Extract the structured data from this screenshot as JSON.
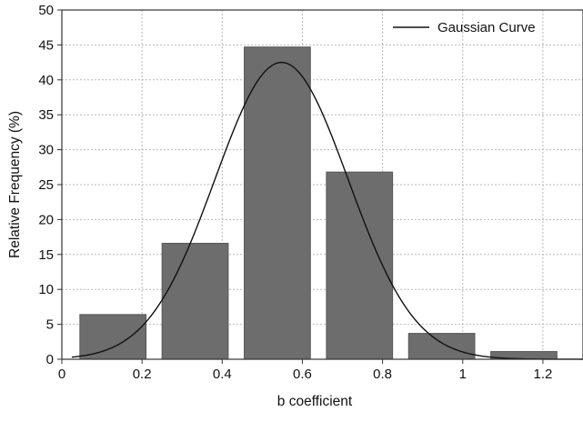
{
  "chart_data": {
    "type": "bar",
    "title": "",
    "xlabel": "b coefficient",
    "ylabel": "Relative Frequency (%)",
    "xlim": [
      0,
      1.3
    ],
    "ylim": [
      0,
      50
    ],
    "grid": true,
    "legend_position": "top-right",
    "x_ticks": [
      "0",
      "0.2",
      "0.4",
      "0.6",
      "0.8",
      "1",
      "1.2"
    ],
    "x_tick_values": [
      0,
      0.2,
      0.4,
      0.6,
      0.8,
      1.0,
      1.2
    ],
    "y_ticks": [
      "0",
      "5",
      "10",
      "15",
      "20",
      "25",
      "30",
      "35",
      "40",
      "45",
      "50"
    ],
    "y_tick_values": [
      0,
      5,
      10,
      15,
      20,
      25,
      30,
      35,
      40,
      45,
      50
    ],
    "bars": [
      {
        "x0": 0.045,
        "x1": 0.21,
        "value": 6.4
      },
      {
        "x0": 0.25,
        "x1": 0.415,
        "value": 16.6
      },
      {
        "x0": 0.455,
        "x1": 0.62,
        "value": 44.7
      },
      {
        "x0": 0.66,
        "x1": 0.825,
        "value": 26.8
      },
      {
        "x0": 0.865,
        "x1": 1.03,
        "value": 3.7
      },
      {
        "x0": 1.07,
        "x1": 1.235,
        "value": 1.1
      }
    ],
    "series": [
      {
        "name": "Gaussian Curve",
        "type": "line",
        "mean": 0.548,
        "sd": 0.166,
        "peak": 42.5,
        "x_range": [
          0.025,
          1.3
        ]
      }
    ],
    "colors": {
      "bar_fill": "#6d6d6d",
      "bar_stroke": "#565656",
      "curve": "#111111",
      "grid": "#b9b9b9",
      "axis": "#333333"
    }
  }
}
